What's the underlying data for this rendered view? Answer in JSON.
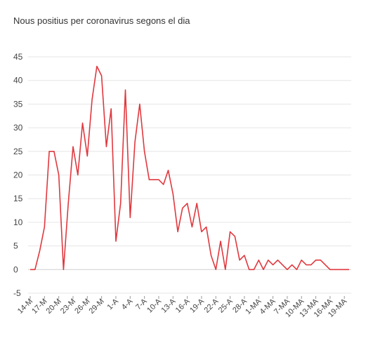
{
  "chart_data": {
    "type": "line",
    "title": "Nous positius per coronavirus segons el dia",
    "xlabel": "",
    "ylabel": "",
    "ylim": [
      -5,
      45
    ],
    "y_ticks": [
      "-5",
      "0",
      "5",
      "10",
      "15",
      "20",
      "25",
      "30",
      "35",
      "40",
      "45"
    ],
    "x_tick_labels": [
      "14-M",
      "17-M",
      "20-M",
      "23-M",
      "26-M",
      "29-M",
      "1-A",
      "4-A",
      "7-A",
      "10-A",
      "13-A",
      "16-A",
      "19-A",
      "22-A",
      "25-A",
      "28-A",
      "1-MA",
      "4-MA",
      "7-MA",
      "10-MA",
      "13-MA",
      "16-MA",
      "19-MA"
    ],
    "grid": "horizontal",
    "line_color": "#e0383e",
    "series": [
      {
        "values": [
          0,
          0,
          4,
          9,
          25,
          25,
          20,
          0,
          14,
          26,
          20,
          31,
          24,
          36,
          43,
          41,
          26,
          34,
          6,
          14,
          38,
          11,
          27,
          35,
          25,
          19,
          19,
          19,
          18,
          21,
          16,
          8,
          13,
          14,
          9,
          14,
          8,
          9,
          3,
          0,
          6,
          0,
          8,
          7,
          2,
          3,
          0,
          0,
          2,
          0,
          2,
          1,
          2,
          1,
          0,
          1,
          0,
          2,
          1,
          1,
          2,
          2,
          1,
          0,
          0,
          0,
          0,
          0
        ]
      }
    ]
  }
}
